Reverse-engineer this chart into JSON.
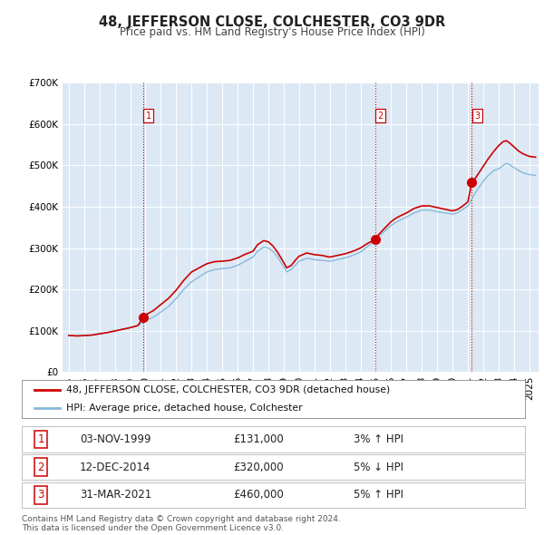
{
  "title": "48, JEFFERSON CLOSE, COLCHESTER, CO3 9DR",
  "subtitle": "Price paid vs. HM Land Registry's House Price Index (HPI)",
  "background_color": "#ffffff",
  "plot_bg_color": "#dce9f5",
  "grid_color": "#ffffff",
  "ylim": [
    0,
    700000
  ],
  "yticks": [
    0,
    100000,
    200000,
    300000,
    400000,
    500000,
    600000,
    700000
  ],
  "ytick_labels": [
    "£0",
    "£100K",
    "£200K",
    "£300K",
    "£400K",
    "£500K",
    "£600K",
    "£700K"
  ],
  "xlim_start": 1994.6,
  "xlim_end": 2025.6,
  "sale_dates": [
    1999.84,
    2014.95,
    2021.25
  ],
  "sale_prices": [
    131000,
    320000,
    460000
  ],
  "sale_labels": [
    "1",
    "2",
    "3"
  ],
  "vline_color": "#cc0000",
  "vline_style": ":",
  "marker_color": "#cc0000",
  "marker_size": 7,
  "red_line_color": "#cc0000",
  "blue_line_color": "#89b8d9",
  "legend_entry1": "48, JEFFERSON CLOSE, COLCHESTER, CO3 9DR (detached house)",
  "legend_entry2": "HPI: Average price, detached house, Colchester",
  "table_rows": [
    {
      "num": "1",
      "date": "03-NOV-1999",
      "price": "£131,000",
      "hpi": "3% ↑ HPI"
    },
    {
      "num": "2",
      "date": "12-DEC-2014",
      "price": "£320,000",
      "hpi": "5% ↓ HPI"
    },
    {
      "num": "3",
      "date": "31-MAR-2021",
      "price": "£460,000",
      "hpi": "5% ↑ HPI"
    }
  ],
  "footnote": "Contains HM Land Registry data © Crown copyright and database right 2024.\nThis data is licensed under the Open Government Licence v3.0.",
  "title_fontsize": 10.5,
  "subtitle_fontsize": 8.5,
  "tick_fontsize": 7.5,
  "label_fontsize": 8.0,
  "legend_fontsize": 7.8,
  "table_fontsize": 8.5,
  "footnote_fontsize": 6.5,
  "hpi_line": [
    [
      1995.0,
      88000
    ],
    [
      1995.3,
      87500
    ],
    [
      1995.6,
      87000
    ],
    [
      1996.0,
      88000
    ],
    [
      1996.5,
      89000
    ],
    [
      1997.0,
      92000
    ],
    [
      1997.5,
      95000
    ],
    [
      1998.0,
      99000
    ],
    [
      1998.5,
      103000
    ],
    [
      1999.0,
      107000
    ],
    [
      1999.5,
      112000
    ],
    [
      1999.84,
      120000
    ],
    [
      2000.0,
      124000
    ],
    [
      2000.5,
      132000
    ],
    [
      2001.0,
      145000
    ],
    [
      2001.5,
      158000
    ],
    [
      2002.0,
      178000
    ],
    [
      2002.5,
      200000
    ],
    [
      2003.0,
      218000
    ],
    [
      2003.5,
      230000
    ],
    [
      2004.0,
      242000
    ],
    [
      2004.5,
      248000
    ],
    [
      2005.0,
      250000
    ],
    [
      2005.5,
      252000
    ],
    [
      2006.0,
      258000
    ],
    [
      2006.5,
      268000
    ],
    [
      2007.0,
      278000
    ],
    [
      2007.3,
      292000
    ],
    [
      2007.7,
      302000
    ],
    [
      2008.0,
      300000
    ],
    [
      2008.3,
      292000
    ],
    [
      2008.6,
      278000
    ],
    [
      2009.0,
      255000
    ],
    [
      2009.2,
      242000
    ],
    [
      2009.5,
      248000
    ],
    [
      2009.8,
      260000
    ],
    [
      2010.0,
      268000
    ],
    [
      2010.5,
      275000
    ],
    [
      2011.0,
      272000
    ],
    [
      2011.5,
      270000
    ],
    [
      2012.0,
      268000
    ],
    [
      2012.5,
      272000
    ],
    [
      2013.0,
      276000
    ],
    [
      2013.5,
      282000
    ],
    [
      2014.0,
      290000
    ],
    [
      2014.5,
      305000
    ],
    [
      2014.95,
      318000
    ],
    [
      2015.0,
      322000
    ],
    [
      2015.5,
      338000
    ],
    [
      2016.0,
      355000
    ],
    [
      2016.3,
      362000
    ],
    [
      2016.6,
      368000
    ],
    [
      2017.0,
      375000
    ],
    [
      2017.5,
      385000
    ],
    [
      2018.0,
      392000
    ],
    [
      2018.5,
      392000
    ],
    [
      2019.0,
      388000
    ],
    [
      2019.5,
      385000
    ],
    [
      2020.0,
      382000
    ],
    [
      2020.3,
      385000
    ],
    [
      2020.6,
      392000
    ],
    [
      2021.0,
      402000
    ],
    [
      2021.25,
      418000
    ],
    [
      2021.5,
      435000
    ],
    [
      2022.0,
      462000
    ],
    [
      2022.3,
      475000
    ],
    [
      2022.7,
      488000
    ],
    [
      2023.0,
      492000
    ],
    [
      2023.3,
      500000
    ],
    [
      2023.5,
      505000
    ],
    [
      2023.7,
      502000
    ],
    [
      2024.0,
      495000
    ],
    [
      2024.3,
      488000
    ],
    [
      2024.6,
      482000
    ],
    [
      2025.0,
      478000
    ],
    [
      2025.4,
      476000
    ]
  ],
  "red_line": [
    [
      1995.0,
      88000
    ],
    [
      1995.3,
      87500
    ],
    [
      1995.6,
      87000
    ],
    [
      1996.0,
      88000
    ],
    [
      1996.5,
      89000
    ],
    [
      1997.0,
      92000
    ],
    [
      1997.5,
      95000
    ],
    [
      1998.0,
      99000
    ],
    [
      1998.5,
      103000
    ],
    [
      1999.0,
      107000
    ],
    [
      1999.5,
      112000
    ],
    [
      1999.84,
      131000
    ],
    [
      2000.0,
      138000
    ],
    [
      2000.5,
      148000
    ],
    [
      2001.0,
      163000
    ],
    [
      2001.5,
      178000
    ],
    [
      2002.0,
      198000
    ],
    [
      2002.5,
      222000
    ],
    [
      2003.0,
      242000
    ],
    [
      2003.5,
      252000
    ],
    [
      2004.0,
      262000
    ],
    [
      2004.5,
      267000
    ],
    [
      2005.0,
      268000
    ],
    [
      2005.5,
      270000
    ],
    [
      2006.0,
      276000
    ],
    [
      2006.5,
      285000
    ],
    [
      2007.0,
      292000
    ],
    [
      2007.3,
      308000
    ],
    [
      2007.7,
      318000
    ],
    [
      2008.0,
      315000
    ],
    [
      2008.3,
      305000
    ],
    [
      2008.6,
      290000
    ],
    [
      2009.0,
      265000
    ],
    [
      2009.2,
      252000
    ],
    [
      2009.5,
      258000
    ],
    [
      2009.8,
      272000
    ],
    [
      2010.0,
      280000
    ],
    [
      2010.5,
      288000
    ],
    [
      2011.0,
      284000
    ],
    [
      2011.5,
      282000
    ],
    [
      2012.0,
      278000
    ],
    [
      2012.5,
      282000
    ],
    [
      2013.0,
      286000
    ],
    [
      2013.5,
      292000
    ],
    [
      2014.0,
      300000
    ],
    [
      2014.5,
      312000
    ],
    [
      2014.95,
      320000
    ],
    [
      2015.0,
      325000
    ],
    [
      2015.5,
      345000
    ],
    [
      2016.0,
      364000
    ],
    [
      2016.3,
      372000
    ],
    [
      2016.6,
      378000
    ],
    [
      2017.0,
      385000
    ],
    [
      2017.5,
      396000
    ],
    [
      2018.0,
      402000
    ],
    [
      2018.5,
      402000
    ],
    [
      2019.0,
      398000
    ],
    [
      2019.5,
      394000
    ],
    [
      2020.0,
      390000
    ],
    [
      2020.3,
      393000
    ],
    [
      2020.6,
      400000
    ],
    [
      2021.0,
      412000
    ],
    [
      2021.25,
      460000
    ],
    [
      2021.5,
      470000
    ],
    [
      2022.0,
      498000
    ],
    [
      2022.3,
      515000
    ],
    [
      2022.7,
      535000
    ],
    [
      2023.0,
      548000
    ],
    [
      2023.3,
      558000
    ],
    [
      2023.5,
      560000
    ],
    [
      2023.7,
      555000
    ],
    [
      2024.0,
      545000
    ],
    [
      2024.3,
      535000
    ],
    [
      2024.6,
      528000
    ],
    [
      2025.0,
      522000
    ],
    [
      2025.4,
      520000
    ]
  ]
}
